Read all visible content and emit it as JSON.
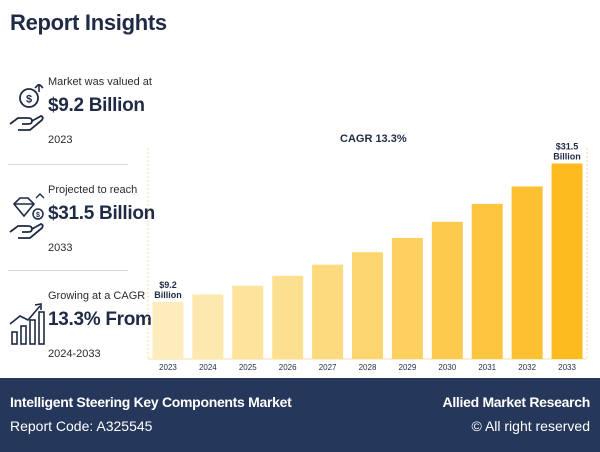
{
  "header": {
    "title": "Report Insights"
  },
  "stats": [
    {
      "label": "Market was valued at",
      "value": "$9.2 Billion",
      "sub": "2023",
      "icon": "money-hand-icon"
    },
    {
      "label": "Projected to reach",
      "value": "$31.5 Billion",
      "sub": "2033",
      "icon": "diamond-hand-icon"
    },
    {
      "label": "Growing at a CAGR",
      "value": "13.3% From",
      "sub": "2024-2033",
      "icon": "growth-chart-icon"
    }
  ],
  "chart_data": {
    "type": "bar",
    "title": "CAGR 13.3%",
    "categories": [
      "2023",
      "2024",
      "2025",
      "2026",
      "2027",
      "2028",
      "2029",
      "2030",
      "2031",
      "2032",
      "2033"
    ],
    "values": [
      9.2,
      10.4,
      11.8,
      13.4,
      15.2,
      17.2,
      19.5,
      22.1,
      25.0,
      27.8,
      31.5
    ],
    "ylim": [
      0,
      34
    ],
    "annotations": [
      {
        "category": "2023",
        "line1": "$9.2",
        "line2": "Billion"
      },
      {
        "category": "2033",
        "line1": "$31.5",
        "line2": "Billion"
      }
    ],
    "colors": [
      "#fdedbc",
      "#fde9ad",
      "#fde39c",
      "#fde08f",
      "#fdda7d",
      "#fdd56e",
      "#fdd05f",
      "#fdca4e",
      "#fdc540",
      "#fdc031",
      "#fdbb20"
    ]
  },
  "footer": {
    "report_name": "Intelligent Steering Key Components Market",
    "report_code": "Report Code: A325545",
    "brand": "Allied Market Research",
    "rights": "© All right reserved"
  }
}
